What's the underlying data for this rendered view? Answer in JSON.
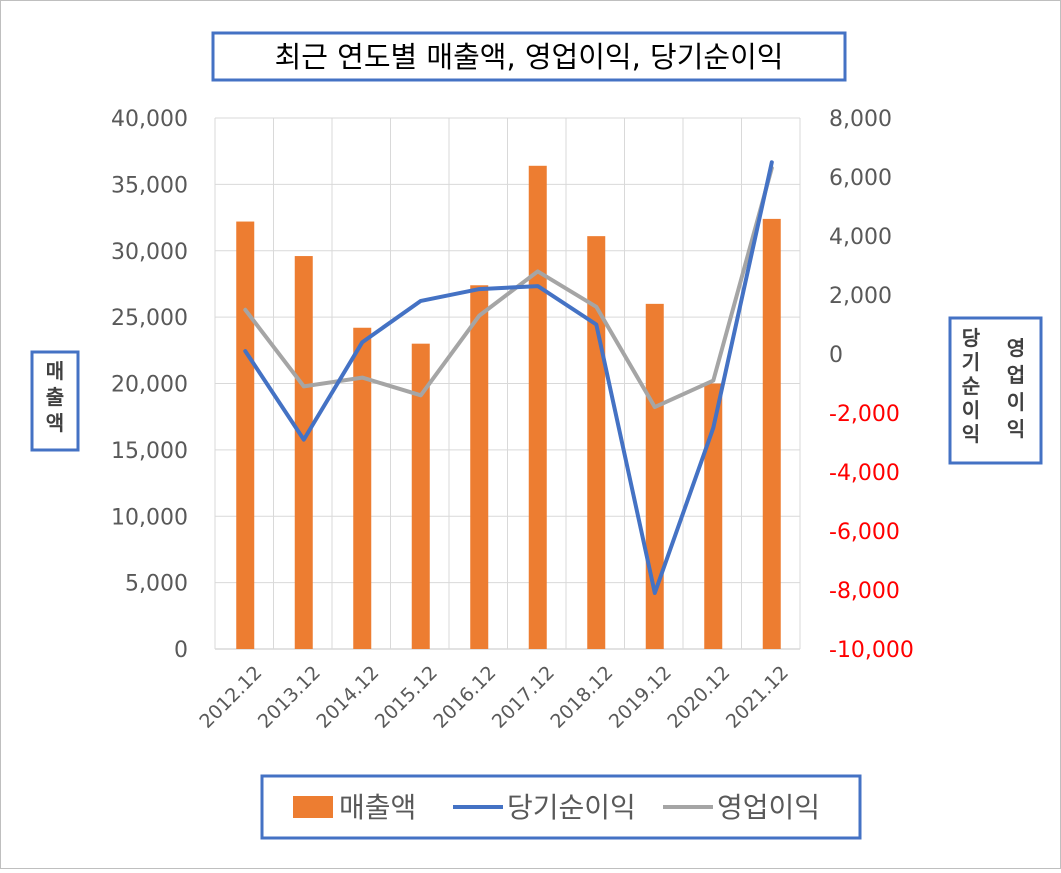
{
  "colors": {
    "bar": "#ed7d31",
    "net_line": "#4472c4",
    "op_line": "#a5a5a5",
    "box_border": "#4472c4",
    "axis_text": "#595959",
    "negative_text": "#ff0000",
    "grid": "#d9d9d9"
  },
  "chart_data": {
    "type": "bar",
    "title": "최근 연도별 매출액, 영업이익, 당기순이익",
    "categories": [
      "2012.12",
      "2013.12",
      "2014.12",
      "2015.12",
      "2016.12",
      "2017.12",
      "2018.12",
      "2019.12",
      "2020.12",
      "2021.12"
    ],
    "y_left": {
      "label": "매출액",
      "ylim": [
        0,
        40000
      ],
      "ticks": [
        0,
        5000,
        10000,
        15000,
        20000,
        25000,
        30000,
        35000,
        40000
      ],
      "tick_labels": [
        "0",
        "5,000",
        "10,000",
        "15,000",
        "20,000",
        "25,000",
        "30,000",
        "35,000",
        "40,000"
      ]
    },
    "y_right": {
      "labels": [
        "당기순이익",
        "영업이익"
      ],
      "ylim": [
        -10000,
        8000
      ],
      "ticks": [
        -10000,
        -8000,
        -6000,
        -4000,
        -2000,
        0,
        2000,
        4000,
        6000,
        8000
      ],
      "tick_labels": [
        "-10,000",
        "-8,000",
        "-6,000",
        "-4,000",
        "-2,000",
        "0",
        "2,000",
        "4,000",
        "6,000",
        "8,000"
      ],
      "negative_color": "#ff0000"
    },
    "series": [
      {
        "name": "매출액",
        "type": "bar",
        "axis": "left",
        "color": "#ed7d31",
        "values": [
          32200,
          29600,
          24200,
          23000,
          27400,
          36400,
          31100,
          26000,
          20000,
          32400
        ]
      },
      {
        "name": "당기순이익",
        "type": "line",
        "axis": "right",
        "color": "#4472c4",
        "values": [
          100,
          -2900,
          400,
          1800,
          2200,
          2300,
          1000,
          -8100,
          -2500,
          6500
        ]
      },
      {
        "name": "영업이익",
        "type": "line",
        "axis": "right",
        "color": "#a5a5a5",
        "values": [
          1500,
          -1100,
          -800,
          -1400,
          1300,
          2800,
          1600,
          -1800,
          -900,
          6300
        ]
      }
    ],
    "legend": {
      "position": "bottom",
      "items": [
        "매출액",
        "당기순이익",
        "영업이익"
      ]
    },
    "grid": true
  }
}
